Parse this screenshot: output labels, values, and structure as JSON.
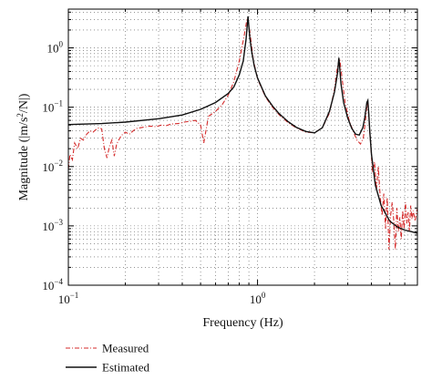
{
  "chart_data": {
    "type": "line",
    "xlabel": "Frequency (Hz)",
    "ylabel_parts": {
      "pre": "Magnitude (|m/s",
      "sup": "2",
      "post": "/N|)"
    },
    "xscale": "log",
    "yscale": "log",
    "xlim": [
      0.1,
      7
    ],
    "ylim": [
      0.0001,
      4.5
    ],
    "xticks": [
      {
        "value": 0.1,
        "base": "10",
        "exp": "−1"
      },
      {
        "value": 1,
        "base": "10",
        "exp": "0"
      }
    ],
    "yticks": [
      {
        "value": 0.0001,
        "base": "10",
        "exp": "−4"
      },
      {
        "value": 0.001,
        "base": "10",
        "exp": "−3"
      },
      {
        "value": 0.01,
        "base": "10",
        "exp": "−2"
      },
      {
        "value": 0.1,
        "base": "10",
        "exp": "−1"
      },
      {
        "value": 1,
        "base": "10",
        "exp": "0"
      }
    ],
    "grid": true,
    "legend_position": "bottom-left, below plot",
    "series": [
      {
        "name": "Measured",
        "style": "dash-dot",
        "color": "#d42a2a",
        "x": [
          0.1,
          0.102,
          0.105,
          0.108,
          0.112,
          0.116,
          0.12,
          0.125,
          0.13,
          0.135,
          0.14,
          0.145,
          0.15,
          0.155,
          0.16,
          0.165,
          0.17,
          0.175,
          0.18,
          0.19,
          0.2,
          0.21,
          0.22,
          0.23,
          0.25,
          0.27,
          0.29,
          0.31,
          0.33,
          0.35,
          0.38,
          0.41,
          0.44,
          0.47,
          0.5,
          0.52,
          0.55,
          0.6,
          0.65,
          0.7,
          0.75,
          0.8,
          0.85,
          0.88,
          0.91,
          0.95,
          1.0,
          1.1,
          1.2,
          1.3,
          1.45,
          1.6,
          1.8,
          2.0,
          2.2,
          2.4,
          2.55,
          2.65,
          2.72,
          2.8,
          2.9,
          3.05,
          3.2,
          3.35,
          3.5,
          3.62,
          3.72,
          3.8,
          3.86,
          3.92,
          3.98,
          4.05,
          4.15,
          4.25,
          4.35,
          4.45,
          4.55,
          4.65,
          4.75,
          4.85,
          4.95,
          5.05,
          5.15,
          5.25,
          5.35,
          5.45,
          5.55,
          5.65,
          5.75,
          5.85,
          5.95,
          6.05,
          6.15,
          6.25,
          6.35,
          6.45,
          6.55,
          6.65,
          6.8,
          7.0
        ],
        "y": [
          0.009,
          0.016,
          0.013,
          0.025,
          0.02,
          0.03,
          0.028,
          0.035,
          0.04,
          0.038,
          0.042,
          0.045,
          0.043,
          0.02,
          0.014,
          0.022,
          0.028,
          0.015,
          0.024,
          0.033,
          0.038,
          0.035,
          0.04,
          0.044,
          0.046,
          0.048,
          0.047,
          0.05,
          0.049,
          0.052,
          0.053,
          0.056,
          0.058,
          0.06,
          0.05,
          0.025,
          0.07,
          0.085,
          0.11,
          0.16,
          0.27,
          0.6,
          1.6,
          3.1,
          1.9,
          0.62,
          0.3,
          0.15,
          0.1,
          0.075,
          0.055,
          0.045,
          0.038,
          0.037,
          0.045,
          0.08,
          0.2,
          0.5,
          0.65,
          0.3,
          0.12,
          0.06,
          0.04,
          0.028,
          0.024,
          0.03,
          0.06,
          0.12,
          0.09,
          0.04,
          0.02,
          0.008,
          0.012,
          0.004,
          0.01,
          0.003,
          0.0015,
          0.0035,
          0.0009,
          0.003,
          0.0004,
          0.0015,
          0.0025,
          0.0012,
          0.0004,
          0.002,
          0.0008,
          0.0014,
          0.0006,
          0.0018,
          0.0009,
          0.0025,
          0.0011,
          0.0017,
          0.0008,
          0.0022,
          0.0013,
          0.0018,
          0.0012,
          0.002
        ]
      },
      {
        "name": "Estimated",
        "style": "solid",
        "color": "#111111",
        "x": [
          0.1,
          0.15,
          0.2,
          0.3,
          0.4,
          0.5,
          0.6,
          0.7,
          0.75,
          0.8,
          0.84,
          0.87,
          0.89,
          0.91,
          0.93,
          0.96,
          1.0,
          1.1,
          1.2,
          1.3,
          1.45,
          1.6,
          1.8,
          2.0,
          2.2,
          2.4,
          2.55,
          2.65,
          2.69,
          2.72,
          2.76,
          2.85,
          3.0,
          3.15,
          3.3,
          3.45,
          3.6,
          3.7,
          3.78,
          3.83,
          3.87,
          3.92,
          4.0,
          4.2,
          4.5,
          5.0,
          5.5,
          6.0,
          6.5,
          7.0
        ],
        "y": [
          0.051,
          0.053,
          0.056,
          0.064,
          0.074,
          0.092,
          0.12,
          0.17,
          0.22,
          0.35,
          0.6,
          1.4,
          3.4,
          1.5,
          0.9,
          0.5,
          0.31,
          0.155,
          0.105,
          0.078,
          0.057,
          0.046,
          0.039,
          0.037,
          0.045,
          0.085,
          0.18,
          0.38,
          0.68,
          0.45,
          0.25,
          0.12,
          0.065,
          0.044,
          0.035,
          0.034,
          0.045,
          0.07,
          0.12,
          0.13,
          0.08,
          0.04,
          0.016,
          0.0048,
          0.0022,
          0.0012,
          0.00095,
          0.00085,
          0.0008,
          0.00075
        ]
      }
    ]
  }
}
